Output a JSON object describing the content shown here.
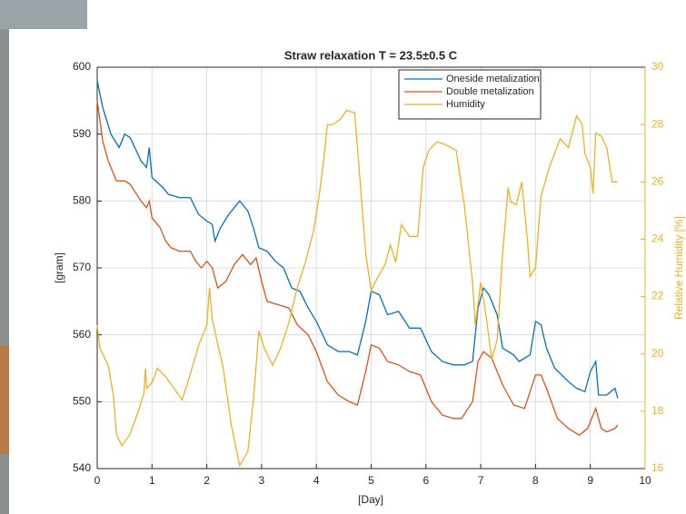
{
  "chart_data": {
    "type": "line",
    "title": "Straw relaxation T = 23.5±0.5 C",
    "xlabel": "[Day]",
    "ylabel": "[gram]",
    "y2label": "Relative Humidity [%]",
    "xlim": [
      0,
      10
    ],
    "xticks": [
      0,
      1,
      2,
      3,
      4,
      5,
      6,
      7,
      8,
      9,
      10
    ],
    "ylim": [
      540,
      600
    ],
    "yticks": [
      540,
      550,
      560,
      570,
      580,
      590,
      600
    ],
    "y2lim": [
      16,
      30
    ],
    "y2ticks": [
      16,
      18,
      20,
      22,
      24,
      26,
      28,
      30
    ],
    "grid": true,
    "legend": "top-right",
    "series": [
      {
        "name": "Oneside metalization",
        "color": "#0072BD",
        "x": [
          0,
          0.1,
          0.25,
          0.4,
          0.5,
          0.6,
          0.8,
          0.9,
          0.95,
          1.0,
          1.2,
          1.3,
          1.5,
          1.7,
          1.85,
          2.0,
          2.1,
          2.15,
          2.25,
          2.4,
          2.6,
          2.75,
          2.85,
          2.95,
          3.1,
          3.25,
          3.4,
          3.55,
          3.7,
          3.85,
          4.0,
          4.2,
          4.4,
          4.6,
          4.75,
          4.9,
          5.0,
          5.15,
          5.3,
          5.5,
          5.7,
          5.9,
          6.1,
          6.3,
          6.5,
          6.7,
          6.85,
          6.95,
          7.05,
          7.15,
          7.3,
          7.4,
          7.6,
          7.7,
          7.9,
          8.0,
          8.1,
          8.2,
          8.35,
          8.6,
          8.75,
          8.9,
          9.0,
          9.1,
          9.15,
          9.3,
          9.45,
          9.5
        ],
        "values": [
          598,
          594,
          590,
          588,
          590,
          589.5,
          586,
          585,
          588,
          583.5,
          582,
          581,
          580.5,
          580.5,
          578,
          577,
          576.5,
          574,
          576,
          578,
          580,
          578.5,
          576,
          573,
          572.5,
          571,
          570,
          567,
          566.5,
          564,
          562,
          558.5,
          557.5,
          557.5,
          557,
          562,
          566.5,
          566,
          563,
          563.5,
          561,
          561,
          557.5,
          556,
          555.5,
          555.5,
          556,
          564,
          567,
          566,
          563,
          558,
          557,
          556,
          557,
          562,
          561.5,
          558,
          555,
          553,
          552,
          551.5,
          554.5,
          556,
          551,
          551,
          552,
          550.5
        ]
      },
      {
        "name": "Double metalization",
        "color": "#D95319",
        "x": [
          0,
          0.1,
          0.2,
          0.35,
          0.5,
          0.6,
          0.8,
          0.9,
          0.95,
          1.0,
          1.15,
          1.25,
          1.35,
          1.5,
          1.7,
          1.8,
          1.9,
          2.0,
          2.1,
          2.2,
          2.35,
          2.5,
          2.65,
          2.8,
          2.9,
          3.0,
          3.1,
          3.3,
          3.5,
          3.65,
          3.85,
          4.0,
          4.2,
          4.4,
          4.6,
          4.75,
          4.9,
          5.0,
          5.15,
          5.3,
          5.5,
          5.7,
          5.9,
          6.1,
          6.3,
          6.5,
          6.65,
          6.85,
          6.95,
          7.05,
          7.2,
          7.4,
          7.6,
          7.8,
          7.9,
          8.0,
          8.1,
          8.2,
          8.4,
          8.6,
          8.8,
          8.95,
          9.1,
          9.2,
          9.3,
          9.45,
          9.5
        ],
        "values": [
          595,
          589,
          586,
          583,
          583,
          582.5,
          580,
          579,
          580,
          577.5,
          576,
          574,
          573,
          572.5,
          572.5,
          571,
          570,
          571,
          570,
          567,
          568,
          570.5,
          572,
          570.5,
          571.5,
          568,
          565,
          564.5,
          564,
          561.5,
          560,
          557.5,
          553,
          551,
          550,
          549.5,
          554.5,
          558.5,
          558,
          556,
          555.5,
          554.5,
          554,
          550,
          548,
          547.5,
          547.5,
          550,
          556,
          557.5,
          556.5,
          552.5,
          549.5,
          549,
          551.5,
          554,
          554,
          552,
          547.5,
          546,
          545,
          546,
          549,
          546,
          545.5,
          546,
          546.5
        ]
      },
      {
        "name": "Humidity",
        "color": "#EDB120",
        "axis": "y2",
        "x": [
          0,
          0.05,
          0.2,
          0.3,
          0.35,
          0.45,
          0.6,
          0.75,
          0.85,
          0.88,
          0.9,
          1.0,
          1.1,
          1.25,
          1.4,
          1.55,
          1.7,
          1.85,
          2.0,
          2.05,
          2.1,
          2.3,
          2.45,
          2.6,
          2.75,
          2.85,
          2.95,
          3.05,
          3.2,
          3.35,
          3.5,
          3.65,
          3.8,
          3.95,
          4.05,
          4.15,
          4.2,
          4.3,
          4.45,
          4.55,
          4.7,
          4.8,
          4.9,
          5.0,
          5.1,
          5.25,
          5.35,
          5.45,
          5.55,
          5.7,
          5.85,
          5.95,
          6.05,
          6.2,
          6.35,
          6.55,
          6.7,
          6.85,
          6.9,
          7.0,
          7.1,
          7.2,
          7.3,
          7.4,
          7.5,
          7.55,
          7.65,
          7.75,
          7.85,
          7.9,
          8.0,
          8.1,
          8.25,
          8.45,
          8.6,
          8.75,
          8.85,
          8.9,
          9.0,
          9.05,
          9.1,
          9.2,
          9.3,
          9.4,
          9.5
        ],
        "values": [
          21,
          20.2,
          19.6,
          18.5,
          17.2,
          16.8,
          17.2,
          18,
          18.6,
          19.5,
          18.8,
          19,
          19.5,
          19.2,
          18.8,
          18.4,
          19.3,
          20.3,
          21,
          22.3,
          21.2,
          19.5,
          17.5,
          16.1,
          16.6,
          18.4,
          20.8,
          20.2,
          19.6,
          20.2,
          21.1,
          22.3,
          23.2,
          24.3,
          25.5,
          27,
          28,
          28,
          28.2,
          28.5,
          28.4,
          26,
          23.5,
          22.2,
          22.6,
          23.1,
          23.8,
          23.2,
          24.5,
          24.1,
          24.1,
          26.5,
          27.1,
          27.4,
          27.3,
          27.1,
          25.2,
          22.5,
          21,
          22.5,
          21.3,
          19.8,
          20.5,
          23.5,
          25.8,
          25.3,
          25.2,
          26,
          24,
          22.7,
          23,
          25.5,
          26.5,
          27.5,
          27.2,
          28.3,
          28,
          27,
          26.5,
          25.6,
          27.7,
          27.6,
          27.2,
          26,
          26
        ]
      }
    ]
  }
}
